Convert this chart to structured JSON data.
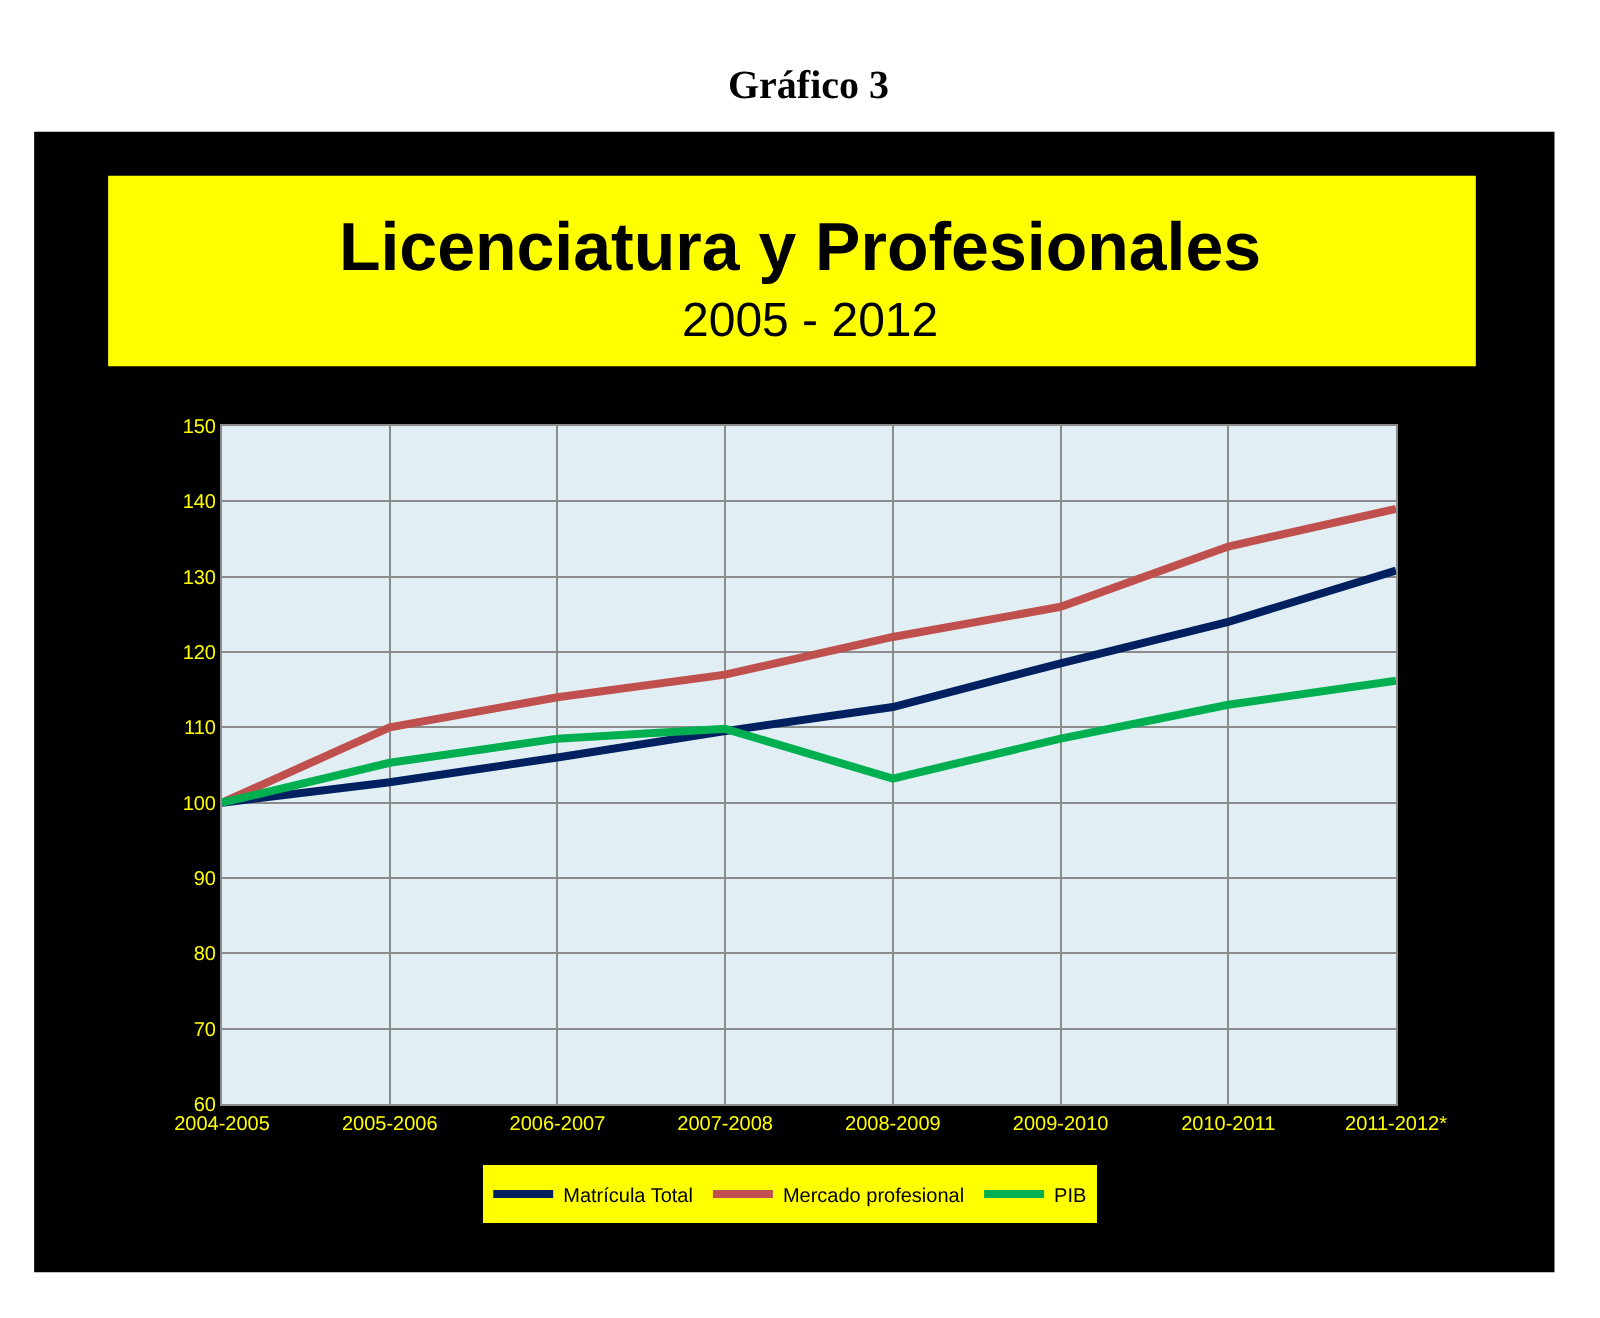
{
  "chart_data": {
    "type": "line",
    "title": "Licenciatura y Profesionales",
    "subtitle": "2005 - 2012",
    "annotations": [
      "Gráfico 3"
    ],
    "categories": [
      "2004-2005",
      "2005-2006",
      "2006-2007",
      "2007-2008",
      "2008-2009",
      "2009-2010",
      "2010-2011",
      "2011-2012*"
    ],
    "series": [
      {
        "name": "Matrícula Total",
        "color": "#002060",
        "values": [
          100,
          102.7,
          106,
          109.5,
          112.7,
          118.5,
          124,
          130.8
        ]
      },
      {
        "name": "Mercado profesional",
        "color": "#c0504d",
        "values": [
          100,
          110,
          114,
          117,
          122,
          126,
          134,
          139
        ]
      },
      {
        "name": "PIB",
        "color": "#00b050",
        "values": [
          100,
          105.3,
          108.5,
          109.8,
          103.2,
          108.5,
          113,
          116.2
        ]
      }
    ],
    "ylim": [
      60,
      150
    ],
    "yticks": [
      60,
      70,
      80,
      90,
      100,
      110,
      120,
      130,
      140,
      150
    ],
    "grid": true,
    "legend": "bottom",
    "marker": "none",
    "line_style": "solid"
  }
}
